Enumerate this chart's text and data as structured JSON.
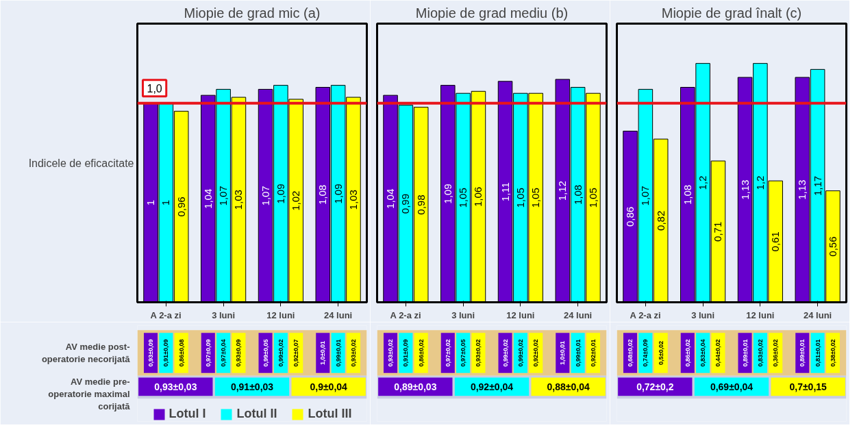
{
  "chart_data": [
    {
      "type": "bar",
      "title": "Miopie de grad mic (a)",
      "ylabel": "Indicele de eficacitate",
      "categories": [
        "A 2-a zi",
        "3 luni",
        "12 luni",
        "24 luni"
      ],
      "ylim": [
        0,
        1.4
      ],
      "tick_labels": "x",
      "legend": "bottom",
      "series": [
        {
          "name": "Lotul I",
          "color": "#6600cc",
          "values": [
            1,
            1.04,
            1.07,
            1.08
          ],
          "value_labels": [
            "1",
            "1,04",
            "1,07",
            "1,08"
          ]
        },
        {
          "name": "Lotul II",
          "color": "#00ffff",
          "values": [
            1,
            1.07,
            1.09,
            1.09
          ],
          "value_labels": [
            "1",
            "1,07",
            "1,09",
            "1,09"
          ]
        },
        {
          "name": "Lotul III",
          "color": "#ffff00",
          "values": [
            0.96,
            1.03,
            1.02,
            1.03
          ],
          "value_labels": [
            "0,96",
            "1,03",
            "1,02",
            "1,03"
          ]
        }
      ],
      "ref_lines": [
        {
          "axis": "y",
          "value": 1,
          "label": "1,0",
          "color": "#e8141b"
        }
      ],
      "annotations": [
        "0,93±0,09",
        "0,91±0,09",
        "0,86±0,08",
        "0,97±0,09",
        "0,97±0,04",
        "0,93±0,09",
        "0,99±0,05",
        "0,99±0,02",
        "0,92±0,07",
        "1,0±0,01",
        "0,99±0,01",
        "0,93±0,02",
        "0,93±0,03",
        "0,91±0,03",
        "0,9±0,04",
        "AV medie post-operatorie necorijată",
        "AV medie pre-operatorie maximal corijată"
      ]
    },
    {
      "type": "bar",
      "title": "Miopie de grad mediu (b)",
      "categories": [
        "A 2-a zi",
        "3 luni",
        "12 luni",
        "24 luni"
      ],
      "ylim": [
        0,
        1.4
      ],
      "tick_labels": "x",
      "series": [
        {
          "color": "#6600cc",
          "values": [
            1.04,
            1.09,
            1.11,
            1.12
          ],
          "value_labels": [
            "1,04",
            "1,09",
            "1,11",
            "1,12"
          ]
        },
        {
          "color": "#00ffff",
          "values": [
            0.99,
            1.05,
            1.05,
            1.08
          ],
          "value_labels": [
            "0,99",
            "1,05",
            "1,05",
            "1,08"
          ]
        },
        {
          "color": "#ffff00",
          "values": [
            0.98,
            1.06,
            1.05,
            1.05
          ],
          "value_labels": [
            "0,98",
            "1,06",
            "1,05",
            "1,05"
          ]
        }
      ],
      "ref_lines": [
        {
          "axis": "y",
          "value": 1,
          "color": "#e8141b"
        }
      ],
      "annotations": [
        "0,93±0,02",
        "0,91±0,09",
        "0,86±0,02",
        "0,97±0,02",
        "0,97±0,05",
        "0,93±0,02",
        "0,99±0,02",
        "0,99±0,02",
        "0,92±0,02",
        "1,0±0,01",
        "0,99±0,01",
        "0,92±0,01",
        "0,89±0,03",
        "0,92±0,04",
        "0,88±0,04"
      ]
    },
    {
      "type": "bar",
      "title": "Miopie de grad înalt (c)",
      "categories": [
        "A 2-a zi",
        "3 luni",
        "12 luni",
        "24 luni"
      ],
      "ylim": [
        0,
        1.4
      ],
      "tick_labels": "x",
      "series": [
        {
          "color": "#6600cc",
          "values": [
            0.86,
            1.08,
            1.13,
            1.13
          ],
          "value_labels": [
            "0,86",
            "1,08",
            "1,13",
            "1,13"
          ]
        },
        {
          "color": "#00ffff",
          "values": [
            1.07,
            1.2,
            1.2,
            1.17
          ],
          "value_labels": [
            "1,07",
            "1,2",
            "1,2",
            "1,17"
          ]
        },
        {
          "color": "#ffff00",
          "values": [
            0.82,
            0.71,
            0.61,
            0.56
          ],
          "value_labels": [
            "0,82",
            "0,71",
            "0,61",
            "0,56"
          ]
        }
      ],
      "ref_lines": [
        {
          "axis": "y",
          "value": 1,
          "color": "#e8141b"
        }
      ],
      "annotations": [
        "0,68±0,02",
        "0,74±0,09",
        "0,5±0,02",
        "0,86±0,02",
        "0,83±0,04",
        "0,44±0,02",
        "0,89±0,01",
        "0,83±0,02",
        "0,36±0,02",
        "0,89±0,01",
        "0,81±0,01",
        "0,38±0,02",
        "0,72±0,2",
        "0,69±0,04",
        "0,7±0,15"
      ]
    }
  ]
}
